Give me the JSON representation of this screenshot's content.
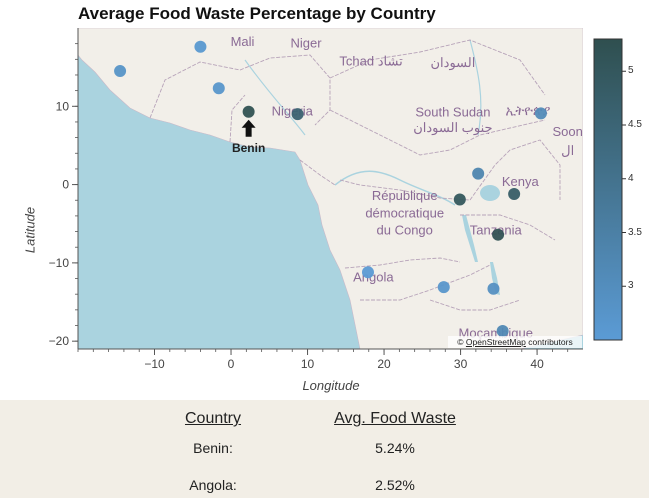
{
  "chart_data": {
    "type": "scatter",
    "title": "Average Food Waste Percentage by Country",
    "xlabel": "Longitude",
    "ylabel": "Latitude",
    "xlim": [
      -20,
      46
    ],
    "ylim": [
      -21,
      20
    ],
    "x_ticks": [
      -10,
      0,
      10,
      20,
      30,
      40
    ],
    "x_tick_labels": [
      "−10",
      "0",
      "10",
      "20",
      "30",
      "40"
    ],
    "y_ticks": [
      -20,
      -10,
      0,
      10
    ],
    "y_tick_labels": [
      "−20",
      "−10",
      "0",
      "10"
    ],
    "background": "OpenStreetMap tiles",
    "points": [
      {
        "lon": -4.0,
        "lat": 17.6,
        "value": 2.6
      },
      {
        "lon": -14.5,
        "lat": 14.5,
        "value": 2.8
      },
      {
        "lon": -1.6,
        "lat": 12.3,
        "value": 2.7
      },
      {
        "lon": 2.3,
        "lat": 9.3,
        "value": 5.24
      },
      {
        "lon": 8.7,
        "lat": 9.0,
        "value": 4.6
      },
      {
        "lon": 40.5,
        "lat": 9.1,
        "value": 3.1
      },
      {
        "lon": 32.3,
        "lat": 1.4,
        "value": 3.3
      },
      {
        "lon": 29.9,
        "lat": -1.9,
        "value": 5.0
      },
      {
        "lon": 37.0,
        "lat": -1.2,
        "value": 4.8
      },
      {
        "lon": 34.9,
        "lat": -6.4,
        "value": 5.2
      },
      {
        "lon": 17.9,
        "lat": -11.2,
        "value": 2.52
      },
      {
        "lon": 27.8,
        "lat": -13.1,
        "value": 2.7
      },
      {
        "lon": 34.3,
        "lat": -13.3,
        "value": 2.9
      },
      {
        "lon": 35.5,
        "lat": -18.7,
        "value": 3.2
      }
    ],
    "annotation": {
      "text": "Benin",
      "lon": 2.3,
      "lat": 9.3
    },
    "colorbar": {
      "min": 2.5,
      "max": 5.3,
      "ticks": [
        3,
        3.5,
        4,
        4.5,
        5
      ],
      "tick_labels": [
        "3",
        "3.5",
        "4",
        "4.5",
        "5"
      ],
      "color_low": "#5b9bd5",
      "color_high": "#2f4f4f"
    }
  },
  "map_labels": [
    {
      "text": "Mali",
      "lon": 1.5,
      "lat": 17.7
    },
    {
      "text": "Niger",
      "lon": 9.8,
      "lat": 17.5
    },
    {
      "text": "Tchad تشاد",
      "lon": 18.3,
      "lat": 15.2
    },
    {
      "text": "السودان",
      "lon": 29.0,
      "lat": 15.0
    },
    {
      "text": "Nigeria",
      "lon": 8.0,
      "lat": 8.8
    },
    {
      "text": "South Sudan",
      "lon": 29.0,
      "lat": 8.7
    },
    {
      "text": "ኢትዮጵያ",
      "lon": 38.8,
      "lat": 8.9
    },
    {
      "text": "Soon",
      "lon": 44.0,
      "lat": 6.2
    },
    {
      "text": "جنوب السودان",
      "lon": 29.0,
      "lat": 6.7
    },
    {
      "text": "ال",
      "lon": 44.0,
      "lat": 3.8
    },
    {
      "text": "Kenya",
      "lon": 37.8,
      "lat": -0.2
    },
    {
      "text": "République",
      "lon": 22.7,
      "lat": -2.0
    },
    {
      "text": "démocratique",
      "lon": 22.7,
      "lat": -4.2
    },
    {
      "text": "du Congo",
      "lon": 22.7,
      "lat": -6.4
    },
    {
      "text": "Tanzania",
      "lon": 34.6,
      "lat": -6.4
    },
    {
      "text": "Angola",
      "lon": 18.6,
      "lat": -12.4
    },
    {
      "text": "Moçambique",
      "lon": 34.6,
      "lat": -19.5
    }
  ],
  "attribution": {
    "prefix": "© ",
    "link": "OpenStreetMap",
    "suffix": " contributors"
  },
  "table": {
    "headers": {
      "country": "Country",
      "value": "Avg. Food Waste"
    },
    "rows": [
      {
        "country": "Benin:",
        "value": "5.24%"
      },
      {
        "country": "Angola:",
        "value": "2.52%"
      }
    ]
  }
}
